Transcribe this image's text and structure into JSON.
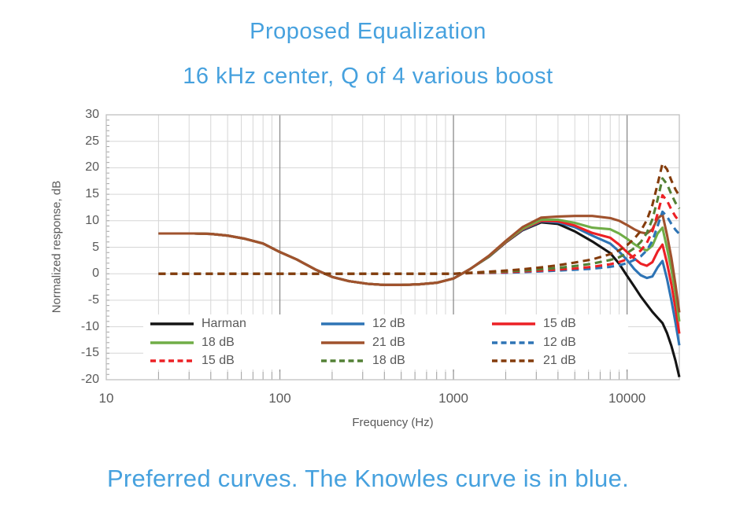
{
  "page": {
    "title_line1": "Proposed Equalization",
    "title_line2": "16 kHz center, Q of 4 various boost",
    "caption": "Preferred curves. The Knowles curve is in blue.",
    "accent_color": "#46A1DE",
    "chart_text_color": "#595959"
  },
  "chart_data": {
    "type": "line",
    "title": "",
    "xlabel": "Frequency (Hz)",
    "ylabel": "Normalized response, dB",
    "x_scale": "log",
    "xlim": [
      10,
      20000
    ],
    "ylim": [
      -20,
      30
    ],
    "x_ticks": [
      10,
      100,
      1000,
      10000
    ],
    "y_ticks": [
      30,
      25,
      20,
      15,
      10,
      5,
      0,
      -5,
      -10,
      -15,
      -20
    ],
    "grid": {
      "minor_color": "#D6D6D6",
      "major_color": "#8C8C8C",
      "border_color": "#BFBFBF",
      "tick_color": "#A3A3A3",
      "major_x_lines": [
        100,
        1000,
        10000
      ]
    },
    "legend_position": "inside-bottom",
    "freq": [
      20,
      25,
      32,
      40,
      50,
      63,
      80,
      100,
      125,
      160,
      200,
      250,
      320,
      400,
      500,
      630,
      800,
      1000,
      1250,
      1600,
      2000,
      2500,
      3200,
      4000,
      5000,
      6300,
      8000,
      9000,
      10000,
      11000,
      12000,
      13000,
      14000,
      15000,
      16000,
      17000,
      18000,
      19000,
      20000
    ],
    "series": [
      {
        "name": "Harman",
        "color": "#141414",
        "style": "solid",
        "db": [
          7.6,
          7.6,
          7.6,
          7.5,
          7.2,
          6.6,
          5.7,
          4.1,
          2.7,
          0.8,
          -0.6,
          -1.4,
          -1.9,
          -2.1,
          -2.1,
          -2.0,
          -1.7,
          -0.9,
          0.9,
          3.2,
          5.9,
          8.2,
          9.7,
          9.4,
          8.0,
          6.1,
          3.9,
          1.9,
          -0.4,
          -2.4,
          -4.3,
          -5.8,
          -7.2,
          -8.3,
          -9.3,
          -11.2,
          -13.6,
          -16.4,
          -19.5
        ]
      },
      {
        "name": "12 dB",
        "color": "#2E74B5",
        "style": "solid",
        "db": [
          7.6,
          7.6,
          7.6,
          7.5,
          7.2,
          6.6,
          5.7,
          4.1,
          2.7,
          0.8,
          -0.6,
          -1.4,
          -1.9,
          -2.1,
          -2.1,
          -2.0,
          -1.7,
          -0.9,
          0.9,
          3.3,
          6.0,
          8.3,
          9.9,
          9.7,
          8.8,
          7.2,
          5.7,
          4.2,
          2.6,
          0.9,
          -0.3,
          -0.8,
          -0.5,
          1.2,
          2.4,
          -1.0,
          -5.0,
          -9.2,
          -13.5
        ]
      },
      {
        "name": "15 dB",
        "color": "#EC2025",
        "style": "solid",
        "db": [
          7.6,
          7.6,
          7.6,
          7.5,
          7.2,
          6.6,
          5.7,
          4.1,
          2.7,
          0.8,
          -0.6,
          -1.4,
          -1.9,
          -2.1,
          -2.1,
          -2.0,
          -1.7,
          -0.9,
          0.9,
          3.3,
          6.0,
          8.4,
          10.0,
          9.9,
          9.1,
          7.7,
          6.8,
          5.5,
          4.1,
          2.9,
          1.9,
          1.5,
          2.2,
          4.2,
          5.5,
          2.0,
          -2.0,
          -6.5,
          -11.3
        ]
      },
      {
        "name": "18 dB",
        "color": "#70AD47",
        "style": "solid",
        "db": [
          7.6,
          7.6,
          7.6,
          7.5,
          7.2,
          6.6,
          5.7,
          4.1,
          2.7,
          0.8,
          -0.6,
          -1.4,
          -1.9,
          -2.1,
          -2.1,
          -2.0,
          -1.7,
          -0.9,
          0.9,
          3.3,
          6.1,
          8.5,
          10.2,
          10.2,
          9.6,
          8.7,
          8.4,
          7.6,
          6.6,
          5.6,
          4.8,
          4.4,
          5.3,
          7.6,
          8.7,
          4.8,
          0.8,
          -3.8,
          -9.0
        ]
      },
      {
        "name": "21 dB",
        "color": "#A0522D",
        "style": "solid",
        "db": [
          7.6,
          7.6,
          7.6,
          7.5,
          7.2,
          6.6,
          5.7,
          4.1,
          2.7,
          0.8,
          -0.6,
          -1.4,
          -1.9,
          -2.1,
          -2.1,
          -2.0,
          -1.7,
          -0.9,
          0.9,
          3.4,
          6.2,
          8.8,
          10.6,
          10.8,
          10.9,
          10.9,
          10.5,
          10.0,
          9.2,
          8.4,
          7.8,
          7.6,
          8.4,
          10.4,
          11.2,
          7.3,
          3.0,
          -2.0,
          -7.3
        ]
      },
      {
        "name": "12 dB",
        "color": "#2E74B5",
        "style": "dashed",
        "db": [
          0,
          0,
          0,
          0,
          0,
          0,
          0,
          0,
          0,
          0,
          0,
          0,
          0,
          0,
          0,
          0,
          0,
          0,
          0.1,
          0.15,
          0.2,
          0.3,
          0.45,
          0.6,
          0.75,
          0.95,
          1.3,
          1.6,
          2.0,
          2.6,
          3.3,
          4.4,
          6.2,
          9.0,
          11.7,
          10.8,
          9.4,
          8.3,
          7.5
        ]
      },
      {
        "name": "15 dB",
        "color": "#EC2025",
        "style": "dashed",
        "db": [
          0,
          0,
          0,
          0,
          0,
          0,
          0,
          0,
          0,
          0,
          0,
          0,
          0,
          0,
          0,
          0,
          0,
          0,
          0.1,
          0.2,
          0.3,
          0.45,
          0.6,
          0.8,
          1.0,
          1.3,
          1.8,
          2.2,
          2.7,
          3.4,
          4.4,
          5.8,
          8.0,
          11.3,
          14.8,
          13.8,
          12.1,
          10.8,
          9.9
        ]
      },
      {
        "name": "18 dB",
        "color": "#538135",
        "style": "dashed",
        "db": [
          0,
          0,
          0,
          0,
          0,
          0,
          0,
          0,
          0,
          0,
          0,
          0,
          0,
          0,
          0,
          0,
          0,
          0,
          0.15,
          0.3,
          0.45,
          0.6,
          0.85,
          1.1,
          1.45,
          1.9,
          2.6,
          3.1,
          3.9,
          4.8,
          6.0,
          7.7,
          10.3,
          14.0,
          18.0,
          16.9,
          15.0,
          13.4,
          12.3
        ]
      },
      {
        "name": "21 dB",
        "color": "#843C0C",
        "style": "dashed",
        "db": [
          0,
          0,
          0,
          0,
          0,
          0,
          0,
          0,
          0,
          0,
          0,
          0,
          0,
          0,
          0,
          0,
          0,
          0,
          0.2,
          0.4,
          0.6,
          0.85,
          1.2,
          1.6,
          2.1,
          2.7,
          3.7,
          4.4,
          5.4,
          6.6,
          8.1,
          10.1,
          13.0,
          16.9,
          20.8,
          19.7,
          17.6,
          15.9,
          14.7
        ]
      }
    ]
  }
}
